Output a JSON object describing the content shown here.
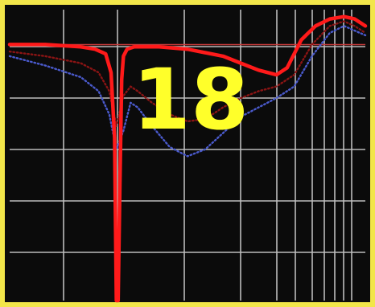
{
  "chart_data": {
    "type": "line",
    "title": "",
    "xlabel": "",
    "ylabel": "",
    "overlay_label": "18",
    "xlim": [
      0,
      1
    ],
    "ylim": [
      -1.1,
      0.15
    ],
    "x_scale": "log",
    "grid": true,
    "legend": "none",
    "reference_line": {
      "y": 0,
      "color": "#c83a3a"
    },
    "colors": {
      "frame": "#f2e64a",
      "background": "#0b0b0b",
      "grid": "#bdbdbd",
      "label": "#ffff2a"
    },
    "series": [
      {
        "color": "#ff1a1a",
        "style": "solid",
        "x": [
          0.0,
          0.1,
          0.2,
          0.24,
          0.27,
          0.285,
          0.295,
          0.3,
          0.305,
          0.31,
          0.315,
          0.32,
          0.33,
          0.35,
          0.38,
          0.42,
          0.5,
          0.6,
          0.65,
          0.7,
          0.75,
          0.78,
          0.82,
          0.86,
          0.9,
          0.94,
          0.97,
          1.0
        ],
        "y": [
          0.0,
          0.0,
          -0.01,
          -0.02,
          -0.04,
          -0.12,
          -0.4,
          -1.1,
          -1.1,
          -0.6,
          -0.15,
          -0.05,
          -0.02,
          -0.01,
          -0.01,
          -0.01,
          -0.02,
          -0.05,
          -0.08,
          -0.11,
          -0.13,
          -0.1,
          0.02,
          0.08,
          0.11,
          0.12,
          0.11,
          0.08
        ]
      },
      {
        "color": "#8a1414",
        "style": "dotted",
        "x": [
          0.0,
          0.1,
          0.2,
          0.25,
          0.28,
          0.3,
          0.32,
          0.34,
          0.36,
          0.4,
          0.45,
          0.5,
          0.55,
          0.6,
          0.65,
          0.7,
          0.75,
          0.8,
          0.85,
          0.9,
          0.94,
          0.97,
          1.0
        ],
        "y": [
          -0.03,
          -0.05,
          -0.08,
          -0.12,
          -0.2,
          -0.35,
          -0.22,
          -0.18,
          -0.2,
          -0.25,
          -0.3,
          -0.33,
          -0.32,
          -0.27,
          -0.23,
          -0.2,
          -0.18,
          -0.13,
          0.0,
          0.08,
          0.1,
          0.08,
          0.05
        ]
      },
      {
        "color": "#4a5acc",
        "style": "dotted",
        "x": [
          0.0,
          0.1,
          0.2,
          0.25,
          0.28,
          0.3,
          0.32,
          0.34,
          0.36,
          0.4,
          0.45,
          0.5,
          0.55,
          0.6,
          0.65,
          0.7,
          0.75,
          0.8,
          0.85,
          0.9,
          0.94,
          0.97,
          1.0
        ],
        "y": [
          -0.05,
          -0.09,
          -0.14,
          -0.2,
          -0.3,
          -0.45,
          -0.37,
          -0.25,
          -0.27,
          -0.35,
          -0.44,
          -0.48,
          -0.45,
          -0.38,
          -0.31,
          -0.27,
          -0.23,
          -0.18,
          -0.05,
          0.05,
          0.08,
          0.06,
          0.04
        ]
      }
    ]
  }
}
